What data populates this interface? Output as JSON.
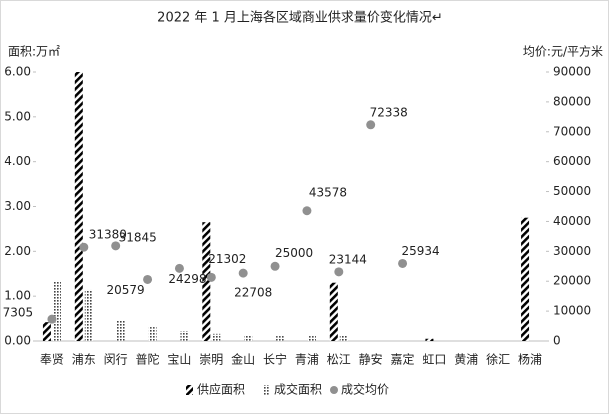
{
  "chart_data": {
    "type": "bar-line",
    "title": "2022 年 1 月上海各区域商业供求量价变化情况↵",
    "y_label": "面积:万㎡",
    "y2_label": "均价:元/平方米",
    "categories": [
      "奉贤",
      "浦东",
      "闵行",
      "普陀",
      "宝山",
      "崇明",
      "金山",
      "长宁",
      "青浦",
      "松江",
      "静安",
      "嘉定",
      "虹口",
      "黄浦",
      "徐汇",
      "杨浦"
    ],
    "series": [
      {
        "name": "供应面积",
        "color": "#000000",
        "kind": "bar",
        "pattern": "hatch",
        "values": [
          0.42,
          6.0,
          0,
          0,
          0,
          2.65,
          0,
          0,
          0,
          1.3,
          0,
          0,
          0.05,
          0,
          0,
          2.75
        ]
      },
      {
        "name": "成交面积",
        "color": "#555555",
        "kind": "bar",
        "pattern": "dots",
        "values": [
          1.34,
          1.14,
          0.45,
          0.31,
          0.22,
          0.16,
          0.13,
          0.11,
          0.11,
          0.12,
          0,
          0,
          0,
          0,
          0,
          0
        ]
      },
      {
        "name": "成交均价",
        "color": "#909090",
        "kind": "scatter",
        "axis": "y2",
        "values": [
          7305,
          31380,
          31845,
          20579,
          24298,
          21302,
          22708,
          25000,
          43578,
          23144,
          72338,
          25934,
          null,
          null,
          null,
          null
        ]
      }
    ],
    "ylim": [
      0,
      6
    ],
    "yticks": [
      {
        "value": 0,
        "label": "0.00"
      },
      {
        "value": 1,
        "label": "1.00"
      },
      {
        "value": 2,
        "label": "2.00"
      },
      {
        "value": 3,
        "label": "3.00"
      },
      {
        "value": 4,
        "label": "4.00"
      },
      {
        "value": 5,
        "label": "5.00"
      },
      {
        "value": 6,
        "label": "6.00"
      }
    ],
    "y2lim": [
      0,
      90000
    ],
    "y2ticks": [
      0,
      10000,
      20000,
      30000,
      40000,
      50000,
      60000,
      70000,
      80000,
      90000
    ],
    "legend": "bottom"
  }
}
